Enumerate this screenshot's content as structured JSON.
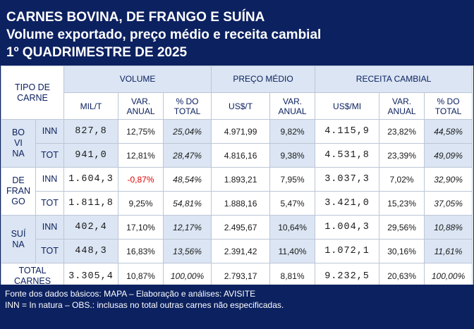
{
  "header": {
    "title": "CARNES BOVINA, DE FRANGO E SUÍNA",
    "subtitle": "Volume exportado, preço médio e receita cambial",
    "period": "1º QUADRIMESTRE DE 2025"
  },
  "table": {
    "tipo_label": "TIPO DE CARNE",
    "groups": {
      "volume": "VOLUME",
      "preco": "PREÇO MÉDIO",
      "receita": "RECEITA CAMBIAL"
    },
    "subheaders": [
      "MIL/T",
      "VAR. ANUAL",
      "% DO TOTAL",
      "US$/T",
      "VAR. ANUAL",
      "US$/MI",
      "VAR. ANUAL",
      "% DO TOTAL"
    ],
    "types": [
      {
        "name": "BO VI NA",
        "rows": [
          {
            "kind": "INN",
            "vol": "827,8",
            "vol_var": "12,75%",
            "vol_pct": "25,04%",
            "preco": "4.971,99",
            "preco_var": "9,82%",
            "rec": "4.115,9",
            "rec_var": "23,82%",
            "rec_pct": "44,58%"
          },
          {
            "kind": "TOT",
            "vol": "941,0",
            "vol_var": "12,81%",
            "vol_pct": "28,47%",
            "preco": "4.816,16",
            "preco_var": "9,38%",
            "rec": "4.531,8",
            "rec_var": "23,39%",
            "rec_pct": "49,09%"
          }
        ]
      },
      {
        "name": "DE FRAN GO",
        "rows": [
          {
            "kind": "INN",
            "vol": "1.604,3",
            "vol_var": "-0,87%",
            "vol_pct": "48,54%",
            "preco": "1.893,21",
            "preco_var": "7,95%",
            "rec": "3.037,3",
            "rec_var": "7,02%",
            "rec_pct": "32,90%"
          },
          {
            "kind": "TOT",
            "vol": "1.811,8",
            "vol_var": "9,25%",
            "vol_pct": "54,81%",
            "preco": "1.888,16",
            "preco_var": "5,47%",
            "rec": "3.421,0",
            "rec_var": "15,23%",
            "rec_pct": "37,05%"
          }
        ]
      },
      {
        "name": "SUÍ NA",
        "rows": [
          {
            "kind": "INN",
            "vol": "402,4",
            "vol_var": "17,10%",
            "vol_pct": "12,17%",
            "preco": "2.495,67",
            "preco_var": "10,64%",
            "rec": "1.004,3",
            "rec_var": "29,56%",
            "rec_pct": "10,88%"
          },
          {
            "kind": "TOT",
            "vol": "448,3",
            "vol_var": "16,83%",
            "vol_pct": "13,56%",
            "preco": "2.391,42",
            "preco_var": "11,40%",
            "rec": "1.072,1",
            "rec_var": "30,16%",
            "rec_pct": "11,61%"
          }
        ]
      }
    ],
    "total": {
      "label": "TOTAL CARNES",
      "vol": "3.305,4",
      "vol_var": "10,87%",
      "vol_pct": "100,00%",
      "preco": "2.793,17",
      "preco_var": "8,81%",
      "rec": "9.232,5",
      "rec_var": "20,63%",
      "rec_pct": "100,00%"
    }
  },
  "footer": {
    "line1": "Fonte dos dados básicos: MAPA – Elaboração e análises: AVISITE",
    "line2": "INN = In natura – OBS.: inclusas no total outras carnes não especificadas."
  },
  "colors": {
    "navy": "#0c2160",
    "shade": "#dbe5f3",
    "negative": "#e00000"
  }
}
